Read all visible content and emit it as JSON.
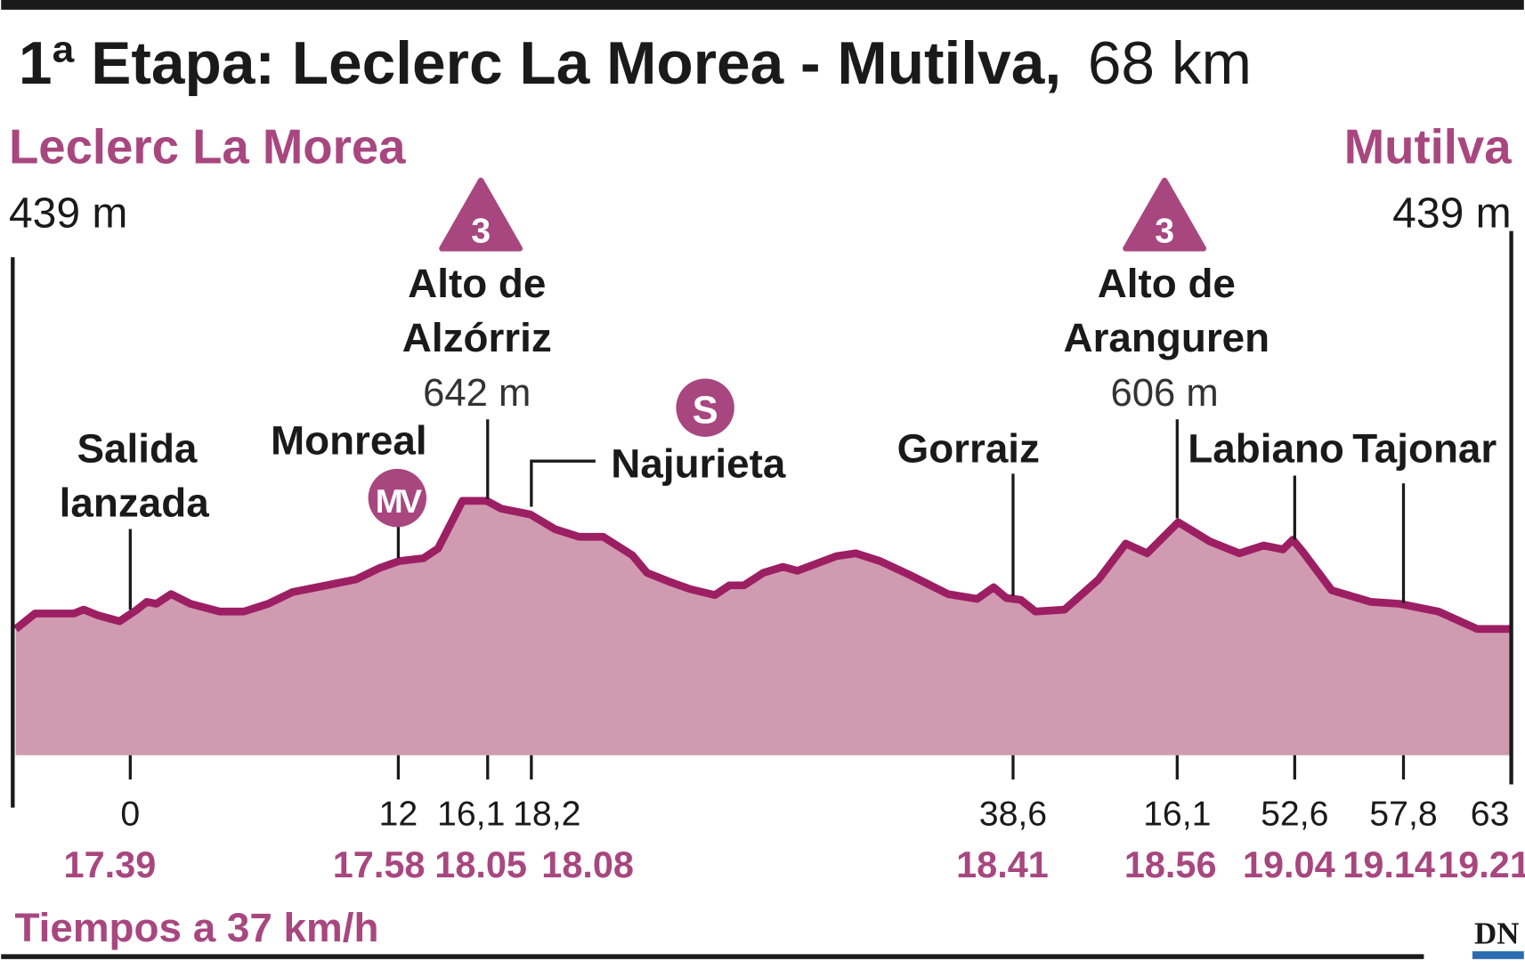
{
  "colors": {
    "accent": "#a8477f",
    "fill": "#d09bb0",
    "line": "#9c1f63",
    "text": "#1a1a1a"
  },
  "chart_data": {
    "type": "area",
    "title_bold": "1ª Etapa: Leclerc La Morea - Mutilva,",
    "title_light": "68 km",
    "start": {
      "name": "Leclerc La Morea",
      "altitude": "439 m"
    },
    "finish": {
      "name": "Mutilva",
      "altitude": "439 m"
    },
    "climbs": [
      {
        "category": "3",
        "name_line1": "Alto de",
        "name_line2": "Alzórriz",
        "altitude": "642 m"
      },
      {
        "category": "3",
        "name_line1": "Alto de",
        "name_line2": "Aranguren",
        "altitude": "606 m"
      }
    ],
    "badges": {
      "sprint": "S",
      "mountain_village": "MV"
    },
    "places": {
      "salida1": "Salida",
      "salida2": "lanzada",
      "monreal": "Monreal",
      "najurieta": "Najurieta",
      "gorraiz": "Gorraiz",
      "labiano": "Labiano",
      "tajonar": "Tajonar"
    },
    "markers": [
      {
        "km": "0",
        "time": "17.39"
      },
      {
        "km": "12",
        "time": "17.58"
      },
      {
        "km": "16,1",
        "time": "18.05"
      },
      {
        "km": "18,2",
        "time": "18.08"
      },
      {
        "km": "38,6",
        "time": "18.41"
      },
      {
        "km": "16,1",
        "time": "18.56"
      },
      {
        "km": "52,6",
        "time": "19.04"
      },
      {
        "km": "57,8",
        "time": "19.14"
      },
      {
        "km": "63",
        "time": "19.21"
      }
    ],
    "footnote": "Tiempos a 37 km/h",
    "logo": "DN"
  }
}
